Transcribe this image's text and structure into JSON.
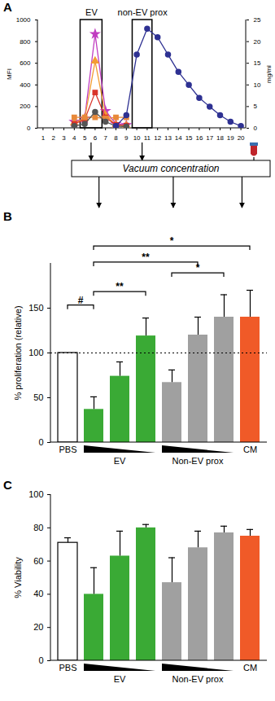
{
  "chart_data": [
    {
      "panel": "A",
      "type": "line",
      "x": [
        1,
        2,
        3,
        4,
        5,
        6,
        7,
        8,
        9,
        10,
        11,
        12,
        13,
        14,
        15,
        16,
        17,
        18,
        19,
        20
      ],
      "xlim": [
        0.5,
        20.5
      ],
      "xticks": [
        1,
        2,
        3,
        4,
        5,
        6,
        7,
        8,
        9,
        10,
        11,
        12,
        13,
        14,
        15,
        16,
        17,
        18,
        19,
        20
      ],
      "ylim": [
        0,
        1000
      ],
      "yticks": [
        0,
        200,
        400,
        600,
        800,
        1000
      ],
      "y_label": "MFI",
      "y2lim": [
        0,
        25
      ],
      "y2ticks": [
        0,
        5,
        10,
        15,
        20,
        25
      ],
      "y2_label": "mg/ml",
      "series": [
        {
          "color": "#c03cc0",
          "marker": "star",
          "values": [
            null,
            null,
            null,
            60,
            90,
            870,
            160,
            40,
            30,
            null,
            null,
            null,
            null,
            null,
            null,
            null,
            null,
            null,
            null,
            null
          ]
        },
        {
          "color": "#f39c34",
          "marker": "triangle",
          "values": [
            null,
            null,
            null,
            50,
            90,
            620,
            120,
            30,
            25,
            null,
            null,
            null,
            null,
            null,
            null,
            null,
            null,
            null,
            null,
            null
          ]
        },
        {
          "color": "#d9342b",
          "marker": "square",
          "values": [
            null,
            null,
            null,
            40,
            80,
            330,
            100,
            30,
            25,
            null,
            null,
            null,
            null,
            null,
            null,
            null,
            null,
            null,
            null,
            null
          ]
        },
        {
          "color": "#e8893a",
          "marker": "square",
          "values": [
            null,
            null,
            null,
            100,
            100,
            100,
            90,
            100,
            100,
            null,
            null,
            null,
            null,
            null,
            null,
            null,
            null,
            null,
            null,
            null
          ]
        },
        {
          "color": "#555555",
          "marker": "circle",
          "values": [
            null,
            null,
            null,
            20,
            40,
            150,
            60,
            20,
            15,
            null,
            null,
            null,
            null,
            null,
            null,
            null,
            null,
            null,
            null,
            null
          ]
        },
        {
          "color": "#2e3192",
          "marker": "circle",
          "axis": "y2",
          "values": [
            null,
            null,
            null,
            null,
            null,
            null,
            null,
            0.5,
            3,
            17,
            23,
            21,
            17,
            13,
            10,
            7,
            5,
            3,
            1.5,
            0.5
          ]
        }
      ],
      "regions": [
        {
          "label": "EV",
          "x": [
            4.6,
            6.7
          ]
        },
        {
          "label": "non-EV prox",
          "x": [
            9.6,
            11.5
          ]
        }
      ],
      "process": "Vacuum concentration"
    },
    {
      "panel": "B",
      "type": "bar",
      "categories": [
        "PBS",
        null,
        null,
        null,
        null,
        null,
        null,
        "CM"
      ],
      "values": [
        100,
        37,
        74,
        119,
        67,
        120,
        140,
        140
      ],
      "errors": [
        0,
        14,
        16,
        20,
        14,
        20,
        25,
        30
      ],
      "colors": [
        "#ffffff",
        "#3aaa35",
        "#3aaa35",
        "#3aaa35",
        "#a0a0a0",
        "#a0a0a0",
        "#a0a0a0",
        "#f05a28"
      ],
      "ylim": [
        0,
        200
      ],
      "yticks": [
        0,
        50,
        100,
        150
      ],
      "y_label": "% proliferation (relative)",
      "reference": 100,
      "groups": [
        {
          "label": "EV",
          "from": 1,
          "to": 3
        },
        {
          "label": "Non-EV prox",
          "from": 4,
          "to": 6
        }
      ],
      "significance": [
        {
          "text": "#",
          "from": 0,
          "to": 1,
          "y": 153
        },
        {
          "text": "**",
          "from": 1,
          "to": 3,
          "y": 168
        },
        {
          "text": "*",
          "from": 4,
          "to": 6,
          "y": 189
        },
        {
          "text": "**",
          "from": 1,
          "to": 5,
          "y": 201
        },
        {
          "text": "*",
          "from": 1,
          "to": 7,
          "y": 219
        }
      ]
    },
    {
      "panel": "C",
      "type": "bar",
      "categories": [
        "PBS",
        null,
        null,
        null,
        null,
        null,
        null,
        "CM"
      ],
      "values": [
        71,
        40,
        63,
        80,
        47,
        68,
        77,
        75
      ],
      "errors": [
        3,
        16,
        15,
        2,
        15,
        10,
        4,
        4
      ],
      "colors": [
        "#ffffff",
        "#3aaa35",
        "#3aaa35",
        "#3aaa35",
        "#a0a0a0",
        "#a0a0a0",
        "#a0a0a0",
        "#f05a28"
      ],
      "ylim": [
        0,
        100
      ],
      "yticks": [
        0,
        20,
        40,
        60,
        80,
        100
      ],
      "y_label": "% Viability",
      "groups": [
        {
          "label": "EV",
          "from": 1,
          "to": 3
        },
        {
          "label": "Non-EV prox",
          "from": 4,
          "to": 6
        }
      ]
    }
  ]
}
